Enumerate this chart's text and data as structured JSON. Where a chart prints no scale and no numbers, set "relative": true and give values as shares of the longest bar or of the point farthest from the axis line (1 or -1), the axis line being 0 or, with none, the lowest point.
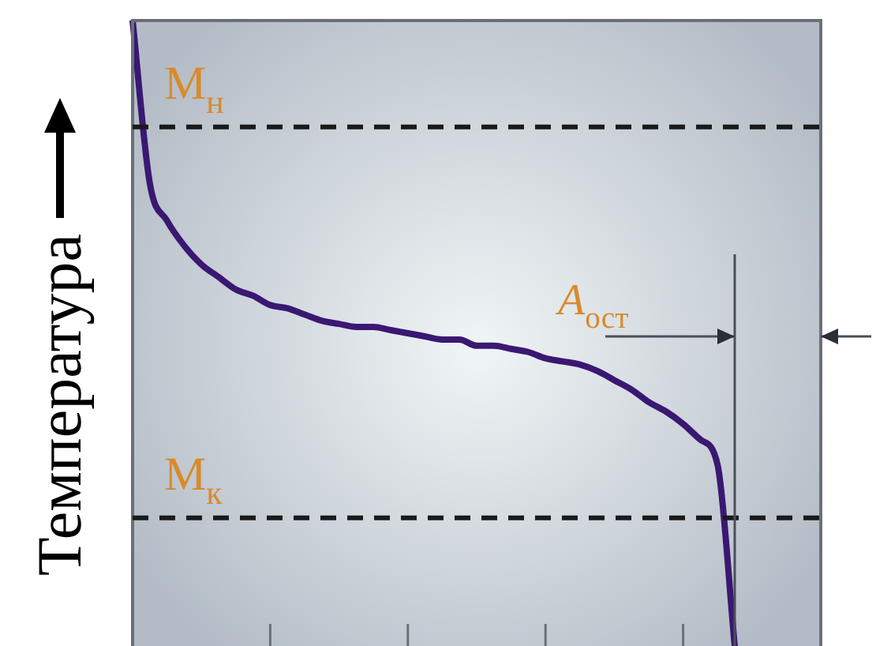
{
  "chart_data": {
    "type": "line",
    "relative": true,
    "ylabel": "Температура",
    "marker": "none",
    "grid": false,
    "legend": false,
    "categories": [
      null,
      null,
      null,
      null,
      null,
      null,
      null,
      null,
      null,
      null,
      null,
      null,
      null,
      null,
      null,
      null,
      null,
      null,
      null,
      null,
      null,
      null,
      null,
      null,
      null,
      null,
      null,
      null,
      null,
      null,
      null,
      null,
      null,
      null,
      null,
      null,
      null,
      null,
      null,
      null,
      null
    ],
    "series": [
      {
        "color": "#3a1872",
        "values": [
          1.0,
          0.74,
          0.68,
          0.64,
          0.61,
          0.59,
          0.57,
          0.56,
          0.545,
          0.54,
          0.53,
          0.52,
          0.515,
          0.51,
          0.51,
          0.505,
          0.5,
          0.495,
          0.49,
          0.49,
          0.48,
          0.48,
          0.475,
          0.47,
          0.46,
          0.455,
          0.45,
          0.44,
          0.425,
          0.41,
          0.39,
          0.375,
          0.355,
          0.33,
          0.29,
          0,
          null,
          null,
          null,
          null,
          null
        ]
      }
    ],
    "ref_lines": [
      {
        "axis": "y",
        "value": 0.83,
        "label": "М$_{н}$",
        "color": "#1a1a1a",
        "line_style": "dashed"
      },
      {
        "axis": "y",
        "value": 0.205,
        "label": "М$_{к}$",
        "color": "#1a1a1a",
        "line_style": "dashed"
      }
    ],
    "annotations": [
      "А$_{ост}$"
    ]
  }
}
